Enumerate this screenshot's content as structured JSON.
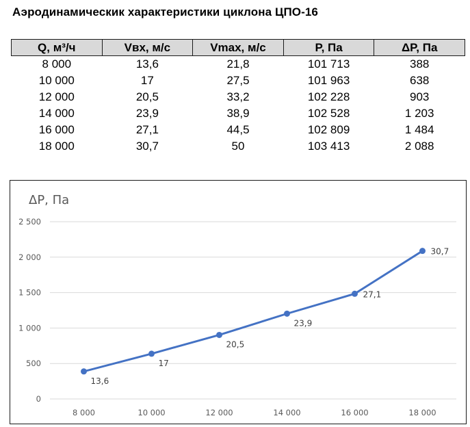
{
  "title": "Аэродинамическик характеристики циклона ЦПО-16",
  "table": {
    "headers": [
      "Q, м³/ч",
      "Vвх, м/с",
      "Vmax, м/с",
      "P, Па",
      "ΔP, Па"
    ],
    "rows": [
      [
        "8 000",
        "13,6",
        "21,8",
        "101 713",
        "388"
      ],
      [
        "10 000",
        "17",
        "27,5",
        "101 963",
        "638"
      ],
      [
        "12 000",
        "20,5",
        "33,2",
        "102 228",
        "903"
      ],
      [
        "14 000",
        "23,9",
        "38,9",
        "102 528",
        "1 203"
      ],
      [
        "16 000",
        "27,1",
        "44,5",
        "102 809",
        "1 484"
      ],
      [
        "18 000",
        "30,7",
        "50",
        "103 413",
        "2 088"
      ]
    ]
  },
  "chart_data": {
    "type": "line",
    "title": "",
    "ylabel": "ΔP, Па",
    "xlabel": "",
    "categories": [
      "8 000",
      "10 000",
      "12 000",
      "14 000",
      "16 000",
      "18 000"
    ],
    "x": [
      8000,
      10000,
      12000,
      14000,
      16000,
      18000
    ],
    "series": [
      {
        "name": "ΔP, Па",
        "values": [
          388,
          638,
          903,
          1203,
          1484,
          2088
        ],
        "data_labels": [
          "13,6",
          "17",
          "20,5",
          "23,9",
          "27,1",
          "30,7"
        ],
        "color": "#4472c4"
      }
    ],
    "y_ticks": [
      "0",
      "500",
      "1 000",
      "1 500",
      "2 000",
      "2 500"
    ],
    "ylim": [
      0,
      2500
    ],
    "grid": true,
    "legend": "none"
  }
}
